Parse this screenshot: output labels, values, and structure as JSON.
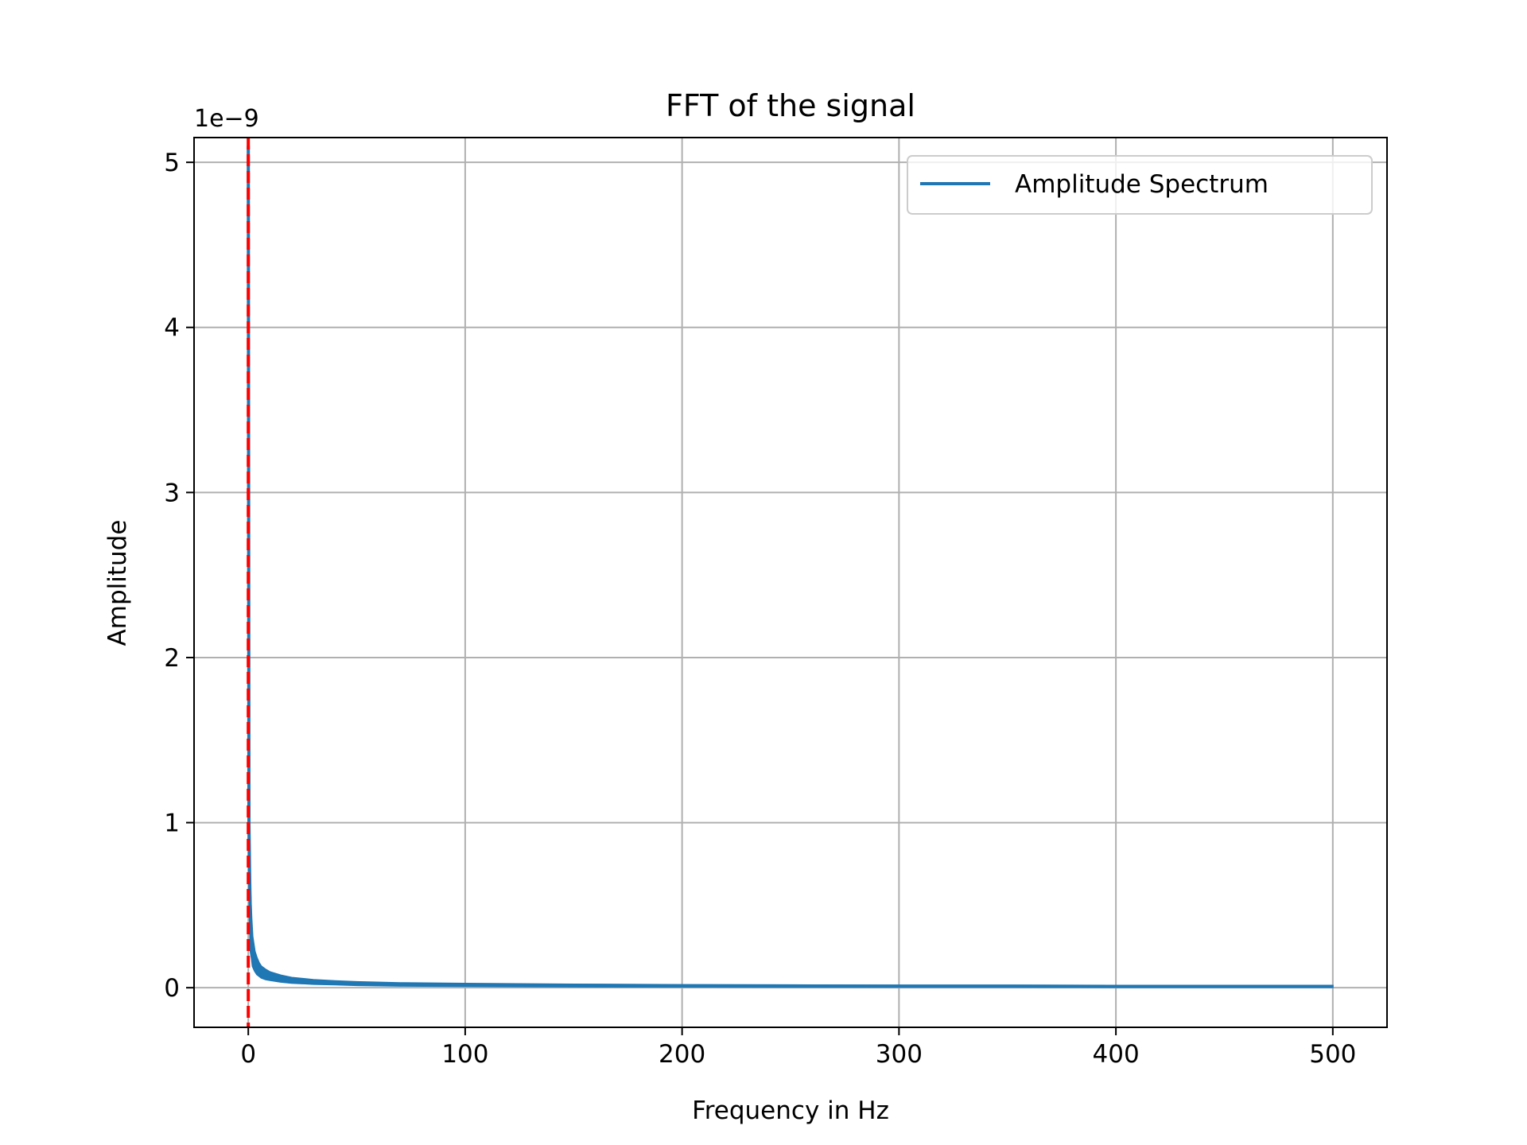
{
  "chart_data": {
    "type": "line",
    "title": "FFT of the signal",
    "xlabel": "Frequency in Hz",
    "ylabel": "Amplitude",
    "y_offset_label": "1e−9",
    "xlim": [
      -25,
      525
    ],
    "ylim": [
      -2.4e-10,
      5.15e-09
    ],
    "x_ticks": [
      0,
      100,
      200,
      300,
      400,
      500
    ],
    "x_tick_labels": [
      "0",
      "100",
      "200",
      "300",
      "400",
      "500"
    ],
    "y_ticks": [
      0,
      1e-09,
      2e-09,
      3e-09,
      4e-09,
      5e-09
    ],
    "y_tick_labels": [
      "0",
      "1",
      "2",
      "3",
      "4",
      "5"
    ],
    "grid": true,
    "legend_position": "top-right",
    "series": [
      {
        "name": "Amplitude Spectrum",
        "color": "#1f77b4",
        "x": [
          0,
          0.3,
          0.6,
          1,
          1.5,
          2,
          3,
          4,
          5,
          6,
          8,
          10,
          15,
          20,
          30,
          40,
          50,
          70,
          100,
          150,
          200,
          250,
          300,
          350,
          400,
          450,
          500
        ],
        "values": [
          5.1e-09,
          1e-09,
          7e-10,
          4e-10,
          3e-10,
          2.2e-10,
          1.6e-10,
          1.3e-10,
          1.1e-10,
          9.5e-11,
          8e-11,
          7e-11,
          5.5e-11,
          4.5e-11,
          3.5e-11,
          3e-11,
          2.5e-11,
          2e-11,
          1.7e-11,
          1.3e-11,
          1.1e-11,
          1e-11,
          9e-12,
          9e-12,
          8e-12,
          8e-12,
          8e-12
        ],
        "noise_band": [
          0,
          3e-10,
          2.5e-10,
          1.8e-10,
          1.2e-10,
          9e-11,
          6e-11,
          5e-11,
          4e-11,
          3.5e-11,
          3e-11,
          2.5e-11,
          2e-11,
          1.6e-11,
          1.3e-11,
          1.1e-11,
          1e-11,
          9e-12,
          8e-12,
          7e-12,
          6e-12,
          6e-12,
          5e-12,
          5e-12,
          5e-12,
          5e-12,
          5e-12
        ]
      }
    ],
    "vlines": [
      {
        "x": 0,
        "color": "#ff0000",
        "style": "dashed"
      }
    ]
  }
}
